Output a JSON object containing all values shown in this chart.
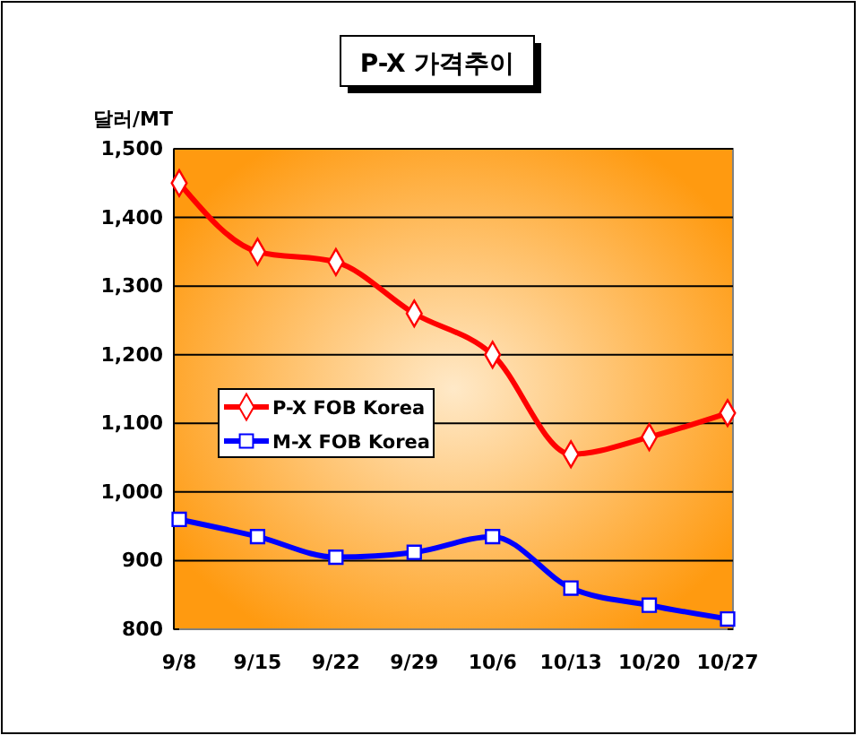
{
  "chart_data": {
    "type": "line",
    "title": "P-X 가격추이",
    "ylabel": "달러/MT",
    "categories": [
      "9/8",
      "9/15",
      "9/22",
      "9/29",
      "10/6",
      "10/13",
      "10/20",
      "10/27"
    ],
    "series": [
      {
        "name": "P-X FOB Korea",
        "color": "#ff0000",
        "marker": "diamond",
        "values": [
          1450,
          1350,
          1335,
          1260,
          1200,
          1055,
          1080,
          1115
        ]
      },
      {
        "name": "M-X FOB Korea",
        "color": "#0000ff",
        "marker": "square",
        "values": [
          960,
          935,
          905,
          912,
          935,
          860,
          835,
          815
        ]
      }
    ],
    "ylim": [
      800,
      1500
    ],
    "yticks": [
      {
        "value": 800,
        "label": "800"
      },
      {
        "value": 900,
        "label": "900"
      },
      {
        "value": 1000,
        "label": "1,000"
      },
      {
        "value": 1100,
        "label": "1,100"
      },
      {
        "value": 1200,
        "label": "1,200"
      },
      {
        "value": 1300,
        "label": "1,300"
      },
      {
        "value": 1400,
        "label": "1,400"
      },
      {
        "value": 1500,
        "label": "1,500"
      }
    ],
    "grid": "y",
    "legend": "left"
  }
}
